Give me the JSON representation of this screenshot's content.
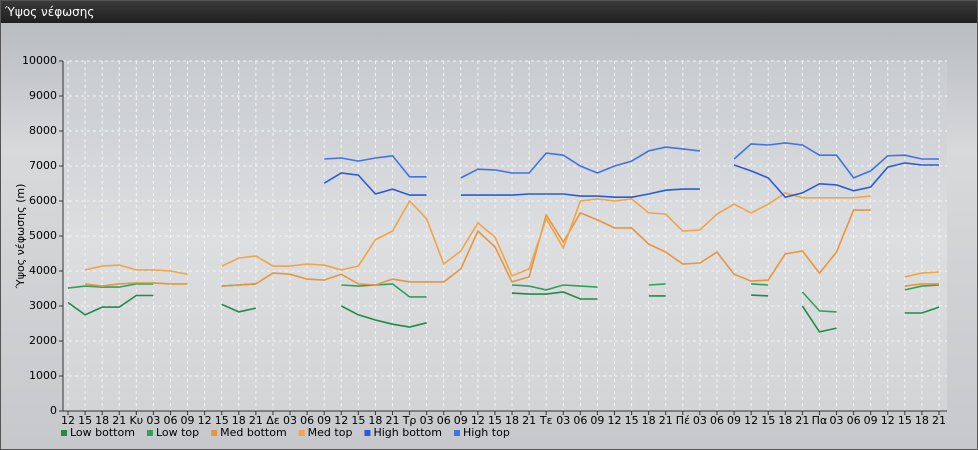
{
  "chart_data": {
    "type": "line",
    "title": "Ύψος νέφωσης",
    "ylabel": "Ύψος νέφωσης (m)",
    "categories": [
      "12",
      "15",
      "18",
      "21",
      "Κυ",
      "03",
      "06",
      "09",
      "12",
      "15",
      "18",
      "21",
      "Δε",
      "03",
      "06",
      "09",
      "12",
      "15",
      "18",
      "21",
      "Τρ",
      "03",
      "06",
      "09",
      "12",
      "15",
      "18",
      "21",
      "Τε",
      "03",
      "06",
      "09",
      "12",
      "15",
      "18",
      "21",
      "Πέ",
      "03",
      "06",
      "09",
      "12",
      "15",
      "18",
      "21",
      "Πα",
      "03",
      "06",
      "09",
      "12",
      "15",
      "18",
      "21"
    ],
    "ylim": [
      0,
      10000
    ],
    "yticks": [
      0,
      1000,
      2000,
      3000,
      4000,
      5000,
      6000,
      7000,
      8000,
      9000,
      10000
    ],
    "grid": true,
    "series": [
      {
        "name": "Low bottom",
        "color": "#1f8a4c",
        "values": [
          3100,
          2750,
          2970,
          2970,
          3300,
          3300,
          null,
          null,
          null,
          3050,
          2830,
          2940,
          null,
          null,
          null,
          null,
          3000,
          2750,
          2600,
          2480,
          2400,
          2520,
          null,
          null,
          null,
          null,
          3370,
          3340,
          3340,
          3400,
          3200,
          3200,
          null,
          null,
          3290,
          3290,
          null,
          null,
          null,
          null,
          3310,
          3290,
          null,
          3000,
          2260,
          2370,
          null,
          null,
          null,
          2800,
          2800,
          2970
        ]
      },
      {
        "name": "Low top",
        "color": "#2fa060",
        "values": [
          3510,
          3570,
          3540,
          3540,
          3630,
          3630,
          null,
          null,
          null,
          3570,
          3600,
          3630,
          null,
          null,
          null,
          null,
          3600,
          3570,
          3600,
          3630,
          3260,
          3260,
          null,
          null,
          null,
          null,
          3600,
          3570,
          3460,
          3600,
          3570,
          3540,
          null,
          null,
          3600,
          3630,
          null,
          null,
          null,
          null,
          3630,
          3600,
          null,
          3400,
          2860,
          2830,
          null,
          null,
          null,
          3460,
          3570,
          3600
        ]
      },
      {
        "name": "Med bottom",
        "color": "#e8963a",
        "values": [
          null,
          3630,
          3570,
          3630,
          3660,
          3660,
          3630,
          3630,
          null,
          3570,
          3600,
          3630,
          3940,
          3910,
          3770,
          3740,
          3910,
          3630,
          3600,
          3770,
          3690,
          3690,
          3690,
          4060,
          5140,
          4690,
          3690,
          3830,
          5600,
          4830,
          5660,
          5460,
          5230,
          5230,
          4770,
          4540,
          4200,
          4230,
          4540,
          3910,
          3710,
          3740,
          4490,
          4570,
          3940,
          4540,
          5740,
          5740,
          null,
          3570,
          3630,
          3630
        ]
      },
      {
        "name": "Med top",
        "color": "#f2a446",
        "values": [
          null,
          4030,
          4140,
          4170,
          4030,
          4030,
          4000,
          3910,
          null,
          4140,
          4370,
          4430,
          4140,
          4140,
          4200,
          4170,
          4030,
          4140,
          4890,
          5140,
          6000,
          5490,
          4200,
          4570,
          5370,
          4970,
          3860,
          4060,
          5490,
          4660,
          6000,
          6060,
          6000,
          6060,
          5660,
          5630,
          5140,
          5170,
          5630,
          5910,
          5660,
          5910,
          6230,
          6090,
          6090,
          6090,
          6090,
          6140,
          null,
          3830,
          3940,
          3970
        ]
      },
      {
        "name": "High bottom",
        "color": "#2a5bd7",
        "values": [
          null,
          null,
          null,
          null,
          null,
          null,
          null,
          null,
          null,
          null,
          null,
          null,
          null,
          null,
          null,
          6510,
          6800,
          6740,
          6200,
          6340,
          6170,
          6170,
          null,
          6170,
          6170,
          6170,
          6170,
          6200,
          6200,
          6200,
          6140,
          6140,
          6110,
          6110,
          6200,
          6310,
          6340,
          6340,
          null,
          7030,
          6860,
          6660,
          6110,
          6230,
          6490,
          6460,
          6290,
          6400,
          6970,
          7090,
          7030,
          7030
        ]
      },
      {
        "name": "High top",
        "color": "#3f73e6",
        "values": [
          null,
          null,
          null,
          null,
          null,
          null,
          null,
          null,
          null,
          null,
          null,
          null,
          null,
          null,
          null,
          7200,
          7230,
          7140,
          7230,
          7290,
          6690,
          6690,
          null,
          6660,
          6910,
          6890,
          6800,
          6800,
          7370,
          7310,
          7000,
          6800,
          7000,
          7140,
          7430,
          7540,
          7490,
          7430,
          null,
          7200,
          7630,
          7600,
          7660,
          7600,
          7310,
          7310,
          6660,
          6860,
          7290,
          7310,
          7200,
          7200
        ]
      }
    ]
  }
}
